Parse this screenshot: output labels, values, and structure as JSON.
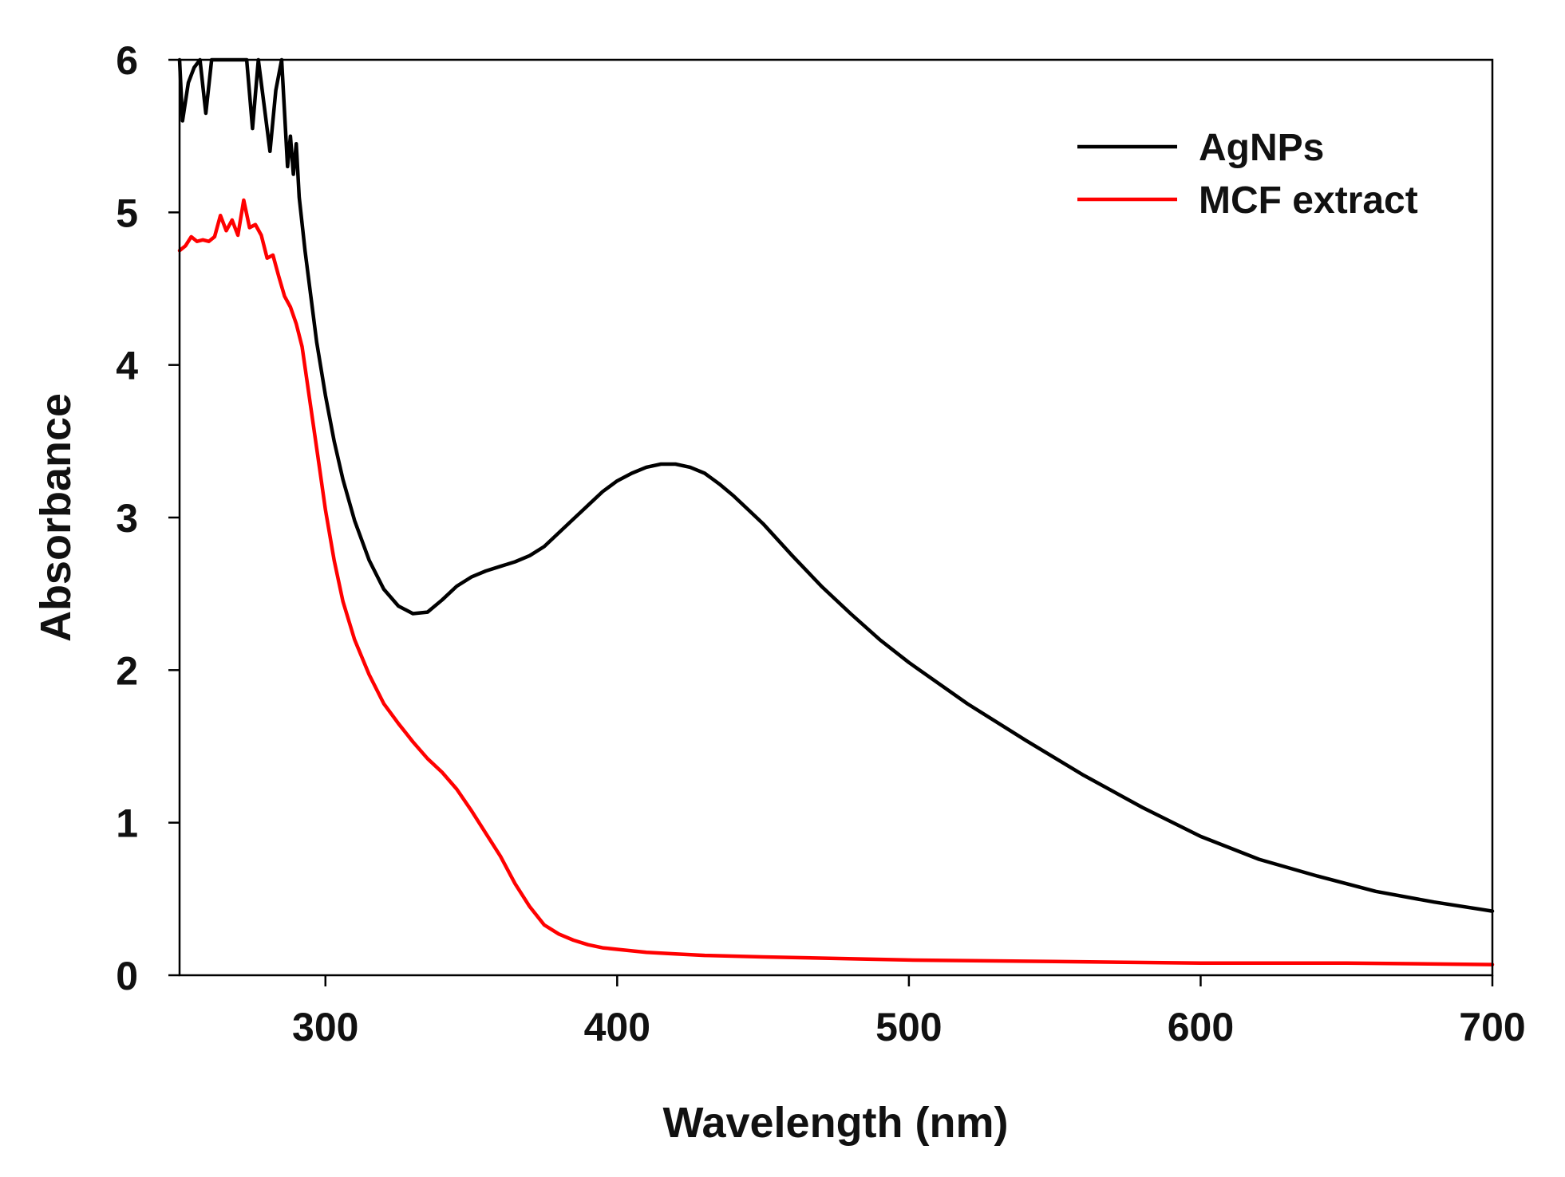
{
  "chart_data": {
    "type": "line",
    "title": "",
    "xlabel": "Wavelength (nm)",
    "ylabel": "Absorbance",
    "xlim": [
      250,
      700
    ],
    "ylim": [
      0,
      6
    ],
    "xticks": [
      300,
      400,
      500,
      600,
      700
    ],
    "yticks": [
      0,
      1,
      2,
      3,
      4,
      5,
      6
    ],
    "xtick_labels": [
      "300",
      "400",
      "500",
      "600",
      "700"
    ],
    "ytick_labels": [
      "0",
      "1",
      "2",
      "3",
      "4",
      "5",
      "6"
    ],
    "grid": false,
    "legend_position": "top-right",
    "series": [
      {
        "name": "AgNPs",
        "color": "#000000",
        "x": [
          250,
          251,
          253,
          255,
          257,
          259,
          261,
          263,
          265,
          267,
          270,
          273,
          275,
          277,
          279,
          281,
          283,
          285,
          287,
          288,
          289,
          290,
          291,
          293,
          295,
          297,
          300,
          303,
          306,
          310,
          315,
          320,
          325,
          330,
          335,
          340,
          345,
          350,
          355,
          360,
          365,
          370,
          375,
          380,
          385,
          390,
          395,
          400,
          405,
          410,
          415,
          420,
          425,
          430,
          435,
          440,
          445,
          450,
          460,
          470,
          480,
          490,
          500,
          520,
          540,
          560,
          580,
          600,
          620,
          640,
          660,
          680,
          700
        ],
        "y": [
          6.0,
          5.6,
          5.85,
          5.95,
          6.0,
          5.65,
          6.0,
          6.0,
          6.0,
          6.0,
          6.0,
          6.0,
          5.55,
          6.0,
          5.7,
          5.4,
          5.8,
          6.0,
          5.3,
          5.5,
          5.25,
          5.45,
          5.1,
          4.75,
          4.45,
          4.15,
          3.8,
          3.5,
          3.25,
          2.98,
          2.72,
          2.53,
          2.42,
          2.37,
          2.38,
          2.46,
          2.55,
          2.61,
          2.65,
          2.68,
          2.71,
          2.75,
          2.81,
          2.9,
          2.99,
          3.08,
          3.17,
          3.24,
          3.29,
          3.33,
          3.35,
          3.35,
          3.33,
          3.29,
          3.22,
          3.14,
          3.05,
          2.96,
          2.75,
          2.55,
          2.37,
          2.2,
          2.05,
          1.78,
          1.54,
          1.31,
          1.1,
          0.91,
          0.76,
          0.65,
          0.55,
          0.48,
          0.42
        ]
      },
      {
        "name": "MCF extract",
        "color": "#ff0000",
        "x": [
          250,
          252,
          254,
          256,
          258,
          260,
          262,
          264,
          266,
          268,
          270,
          272,
          274,
          276,
          278,
          280,
          282,
          284,
          286,
          288,
          290,
          292,
          295,
          298,
          300,
          303,
          306,
          310,
          315,
          320,
          325,
          330,
          335,
          340,
          345,
          350,
          355,
          360,
          365,
          370,
          375,
          380,
          385,
          390,
          395,
          400,
          410,
          420,
          430,
          450,
          500,
          550,
          600,
          650,
          700
        ],
        "y": [
          4.75,
          4.78,
          4.84,
          4.81,
          4.82,
          4.81,
          4.84,
          4.98,
          4.88,
          4.95,
          4.85,
          5.08,
          4.9,
          4.92,
          4.85,
          4.7,
          4.72,
          4.58,
          4.45,
          4.38,
          4.27,
          4.12,
          3.72,
          3.32,
          3.05,
          2.72,
          2.45,
          2.2,
          1.97,
          1.78,
          1.65,
          1.53,
          1.42,
          1.33,
          1.22,
          1.08,
          0.93,
          0.78,
          0.6,
          0.45,
          0.33,
          0.27,
          0.23,
          0.2,
          0.18,
          0.17,
          0.15,
          0.14,
          0.13,
          0.12,
          0.1,
          0.09,
          0.08,
          0.08,
          0.07
        ]
      }
    ]
  }
}
